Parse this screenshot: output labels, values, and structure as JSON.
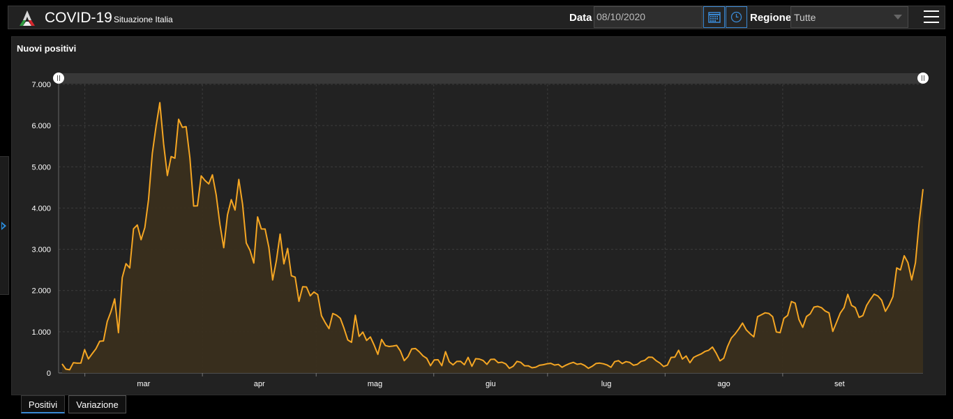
{
  "header": {
    "title": "COVID-19",
    "subtitle": "Situazione Italia",
    "date_label": "Data",
    "date_value": "08/10/2020",
    "region_label": "Regione",
    "region_value": "Tutte"
  },
  "panel": {
    "title": "Nuovi positivi"
  },
  "tabs": [
    {
      "label": "Positivi",
      "active": true
    },
    {
      "label": "Variazione",
      "active": false
    }
  ],
  "colors": {
    "line": "#f5a623",
    "fill": "#3a2f1e",
    "accent": "#3a8ad6"
  },
  "chart_data": {
    "type": "area",
    "title": "Nuovi positivi",
    "x_start": "2020-02-24",
    "x_end": "2020-10-08",
    "month_ticks": [
      "mar",
      "apr",
      "mag",
      "giu",
      "lug",
      "ago",
      "set"
    ],
    "yticks": [
      "0",
      "1.000",
      "2.000",
      "3.000",
      "4.000",
      "5.000",
      "6.000",
      "7.000"
    ],
    "ylim": [
      0,
      7000
    ],
    "grid": true,
    "values": [
      221,
      93,
      78,
      250,
      238,
      240,
      566,
      342,
      466,
      587,
      769,
      778,
      1247,
      1492,
      1797,
      977,
      2313,
      2651,
      2547,
      3497,
      3590,
      3233,
      3526,
      4207,
      5322,
      5986,
      6557,
      5560,
      4789,
      5249,
      5210,
      6153,
      5959,
      5974,
      5217,
      4050,
      4053,
      4782,
      4668,
      4585,
      4805,
      4316,
      3599,
      3039,
      3836,
      4204,
      3951,
      4694,
      4092,
      3153,
      2972,
      2667,
      3786,
      3493,
      3491,
      3047,
      2256,
      2729,
      3370,
      2646,
      3021,
      2357,
      2324,
      1739,
      2091,
      2086,
      1872,
      1965,
      1900,
      1389,
      1221,
      1075,
      1444,
      1401,
      1327,
      1083,
      802,
      744,
      1402,
      888,
      992,
      789,
      875,
      675,
      451,
      813,
      665,
      642,
      652,
      669,
      531,
      300,
      397,
      584,
      593,
      516,
      416,
      355,
      178,
      318,
      321,
      177,
      518,
      270,
      197,
      280,
      283,
      202,
      379,
      163,
      346,
      338,
      303,
      210,
      329,
      333,
      251,
      262,
      221,
      113,
      163,
      280,
      259,
      176,
      174,
      126,
      142,
      187,
      201,
      223,
      235,
      192,
      208,
      138,
      190,
      230,
      259,
      211,
      226,
      182,
      114,
      162,
      230,
      240,
      223,
      193,
      138,
      276,
      300,
      229,
      276,
      255,
      188,
      210,
      282,
      306,
      385,
      380,
      300,
      242,
      158,
      191,
      379,
      386,
      552,
      338,
      412,
      249,
      379,
      425,
      463,
      522,
      552,
      629,
      479,
      295,
      359,
      640,
      845,
      947,
      1071,
      1210,
      1045,
      953,
      878,
      1367,
      1411,
      1460,
      1444,
      1365,
      996,
      978,
      1326,
      1397,
      1733,
      1695,
      1297,
      1108,
      1370,
      1434,
      1597,
      1616,
      1585,
      1501,
      1458,
      1008,
      1229,
      1452,
      1585,
      1907,
      1638,
      1587,
      1350,
      1392,
      1640,
      1786,
      1912,
      1869,
      1766,
      1494,
      1648,
      1851,
      2548,
      2499,
      2844,
      2677,
      2257,
      2677,
      3678,
      4458
    ]
  }
}
